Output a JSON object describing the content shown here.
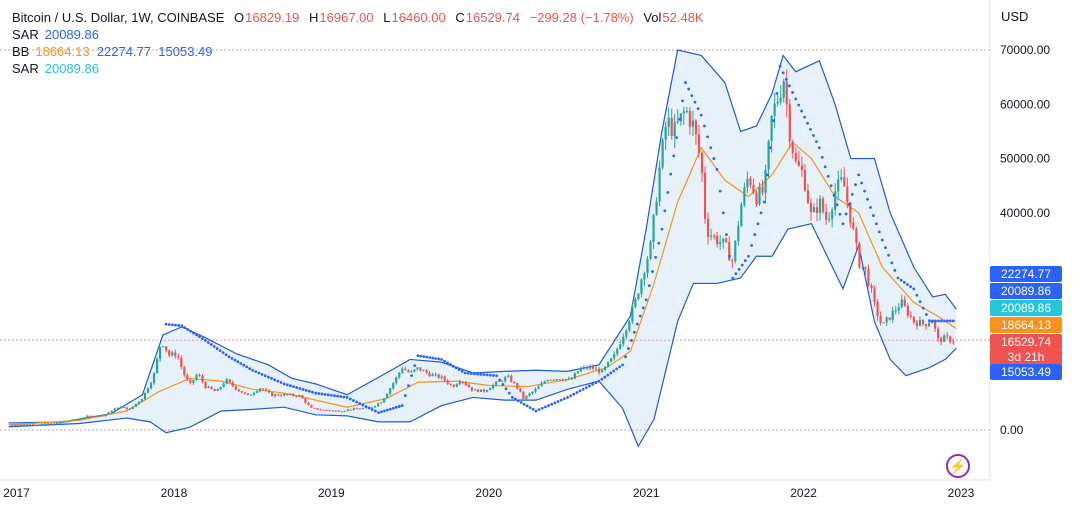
{
  "legend": {
    "symbol": "Bitcoin / U.S. Dollar, 1W, COINBASE",
    "o_label": "O",
    "o_value": "16829.19",
    "h_label": "H",
    "h_value": "16967.00",
    "l_label": "L",
    "l_value": "16460.00",
    "c_label": "C",
    "c_value": "16529.74",
    "change": "−299.28 (−1.78%)",
    "vol_label": "Vol",
    "vol_value": "52.48K",
    "sar1_label": "SAR",
    "sar1_value": "20089.86",
    "bb_label": "BB",
    "bb_mid": "18664.13",
    "bb_upper": "22274.77",
    "bb_lower": "15053.49",
    "sar2_label": "SAR",
    "sar2_value": "20089.86"
  },
  "currency": "USD",
  "price_tags": {
    "bb_upper": "22274.77",
    "sar1": "20089.86",
    "sar2": "20089.86",
    "bb_mid": "18664.13",
    "last_price": "16529.74",
    "countdown": "3d 21h",
    "bb_lower": "15053.49"
  },
  "colors": {
    "up": "#26a69a",
    "down": "#ef5350",
    "bb_band": "#1e5bd6",
    "bb_mid": "#f7931a",
    "bb_fill": "#e3eef9",
    "sar1": "#2962ff",
    "sar2": "#26c6da",
    "grid_dotted": "#d1a0a0"
  },
  "icons": {
    "logo": "lightning-icon"
  },
  "chart_data": {
    "type": "candlestick",
    "title": "Bitcoin / U.S. Dollar, 1W, COINBASE",
    "y_ticks": [
      "70000.00",
      "60000.00",
      "50000.00",
      "40000.00",
      "0.00"
    ],
    "x_ticks": [
      "2017",
      "2018",
      "2019",
      "2020",
      "2021",
      "2022",
      "2023"
    ],
    "ylim": [
      -10000,
      78000
    ],
    "series": [
      {
        "name": "BTCUSD",
        "close": [
          [
            2016.95,
            970
          ],
          [
            2017.1,
            1040
          ],
          [
            2017.25,
            1150
          ],
          [
            2017.35,
            1800
          ],
          [
            2017.45,
            2500
          ],
          [
            2017.55,
            2700
          ],
          [
            2017.65,
            4300
          ],
          [
            2017.72,
            3800
          ],
          [
            2017.8,
            5900
          ],
          [
            2017.87,
            9800
          ],
          [
            2017.92,
            16500
          ],
          [
            2017.97,
            13800
          ],
          [
            2018.02,
            14000
          ],
          [
            2018.06,
            10500
          ],
          [
            2018.1,
            8200
          ],
          [
            2018.15,
            10400
          ],
          [
            2018.2,
            8000
          ],
          [
            2018.27,
            7000
          ],
          [
            2018.33,
            9200
          ],
          [
            2018.4,
            7500
          ],
          [
            2018.47,
            6300
          ],
          [
            2018.55,
            7800
          ],
          [
            2018.62,
            6400
          ],
          [
            2018.7,
            6500
          ],
          [
            2018.8,
            6300
          ],
          [
            2018.87,
            4000
          ],
          [
            2018.95,
            3700
          ],
          [
            2019.05,
            3500
          ],
          [
            2019.15,
            3900
          ],
          [
            2019.25,
            4100
          ],
          [
            2019.32,
            5300
          ],
          [
            2019.38,
            8000
          ],
          [
            2019.45,
            11500
          ],
          [
            2019.5,
            10400
          ],
          [
            2019.55,
            11400
          ],
          [
            2019.62,
            10300
          ],
          [
            2019.7,
            9600
          ],
          [
            2019.77,
            8000
          ],
          [
            2019.82,
            9300
          ],
          [
            2019.9,
            7300
          ],
          [
            2019.97,
            7200
          ],
          [
            2020.05,
            8700
          ],
          [
            2020.12,
            9800
          ],
          [
            2020.18,
            7900
          ],
          [
            2020.22,
            5800
          ],
          [
            2020.3,
            7500
          ],
          [
            2020.37,
            9400
          ],
          [
            2020.45,
            9500
          ],
          [
            2020.52,
            9200
          ],
          [
            2020.58,
            11300
          ],
          [
            2020.65,
            11500
          ],
          [
            2020.72,
            10700
          ],
          [
            2020.8,
            13800
          ],
          [
            2020.87,
            18700
          ],
          [
            2020.93,
            23500
          ],
          [
            2020.98,
            29000
          ],
          [
            2021.03,
            34000
          ],
          [
            2021.08,
            47000
          ],
          [
            2021.13,
            57000
          ],
          [
            2021.18,
            55000
          ],
          [
            2021.25,
            59000
          ],
          [
            2021.3,
            56000
          ],
          [
            2021.35,
            49000
          ],
          [
            2021.38,
            37000
          ],
          [
            2021.43,
            35500
          ],
          [
            2021.5,
            34000
          ],
          [
            2021.55,
            31000
          ],
          [
            2021.6,
            41000
          ],
          [
            2021.65,
            47000
          ],
          [
            2021.7,
            43000
          ],
          [
            2021.75,
            44000
          ],
          [
            2021.8,
            58000
          ],
          [
            2021.84,
            61500
          ],
          [
            2021.88,
            65500
          ],
          [
            2021.9,
            57000
          ],
          [
            2021.95,
            49000
          ],
          [
            2022.0,
            47000
          ],
          [
            2022.05,
            39000
          ],
          [
            2022.1,
            42000
          ],
          [
            2022.15,
            38500
          ],
          [
            2022.2,
            44000
          ],
          [
            2022.25,
            46000
          ],
          [
            2022.3,
            39000
          ],
          [
            2022.35,
            31000
          ],
          [
            2022.4,
            29000
          ],
          [
            2022.45,
            23000
          ],
          [
            2022.5,
            19000
          ],
          [
            2022.55,
            21000
          ],
          [
            2022.62,
            23500
          ],
          [
            2022.7,
            20000
          ],
          [
            2022.77,
            19500
          ],
          [
            2022.82,
            20500
          ],
          [
            2022.85,
            16500
          ],
          [
            2022.9,
            16900
          ],
          [
            2022.95,
            16500
          ]
        ]
      },
      {
        "name": "BB",
        "upper": [
          [
            2016.95,
            1300
          ],
          [
            2017.3,
            1500
          ],
          [
            2017.6,
            3000
          ],
          [
            2017.8,
            6500
          ],
          [
            2017.93,
            17500
          ],
          [
            2018.05,
            19000
          ],
          [
            2018.2,
            17000
          ],
          [
            2018.4,
            14000
          ],
          [
            2018.6,
            12000
          ],
          [
            2018.75,
            9500
          ],
          [
            2018.9,
            8500
          ],
          [
            2019.1,
            6500
          ],
          [
            2019.35,
            10500
          ],
          [
            2019.5,
            13000
          ],
          [
            2019.7,
            12500
          ],
          [
            2019.9,
            10500
          ],
          [
            2020.1,
            10800
          ],
          [
            2020.3,
            11000
          ],
          [
            2020.5,
            10800
          ],
          [
            2020.7,
            12000
          ],
          [
            2020.9,
            21000
          ],
          [
            2021.0,
            37000
          ],
          [
            2021.1,
            55000
          ],
          [
            2021.2,
            70000
          ],
          [
            2021.35,
            69000
          ],
          [
            2021.5,
            64000
          ],
          [
            2021.6,
            55000
          ],
          [
            2021.7,
            56000
          ],
          [
            2021.8,
            62000
          ],
          [
            2021.87,
            69000
          ],
          [
            2021.95,
            66000
          ],
          [
            2022.1,
            68000
          ],
          [
            2022.2,
            60000
          ],
          [
            2022.3,
            50000
          ],
          [
            2022.45,
            50000
          ],
          [
            2022.55,
            40000
          ],
          [
            2022.7,
            30000
          ],
          [
            2022.82,
            24500
          ],
          [
            2022.9,
            25000
          ],
          [
            2022.97,
            22274
          ]
        ],
        "middle": [
          [
            2016.95,
            950
          ],
          [
            2017.4,
            1800
          ],
          [
            2017.7,
            3500
          ],
          [
            2017.9,
            7000
          ],
          [
            2018.1,
            9500
          ],
          [
            2018.3,
            9000
          ],
          [
            2018.5,
            7500
          ],
          [
            2018.7,
            6800
          ],
          [
            2018.9,
            5500
          ],
          [
            2019.1,
            4200
          ],
          [
            2019.35,
            5800
          ],
          [
            2019.55,
            8800
          ],
          [
            2019.8,
            9000
          ],
          [
            2020.0,
            8200
          ],
          [
            2020.25,
            8000
          ],
          [
            2020.5,
            9300
          ],
          [
            2020.75,
            11500
          ],
          [
            2020.9,
            14500
          ],
          [
            2021.05,
            27000
          ],
          [
            2021.2,
            42000
          ],
          [
            2021.35,
            52000
          ],
          [
            2021.5,
            46000
          ],
          [
            2021.65,
            43000
          ],
          [
            2021.8,
            47000
          ],
          [
            2021.93,
            53000
          ],
          [
            2022.05,
            50000
          ],
          [
            2022.2,
            43000
          ],
          [
            2022.35,
            40000
          ],
          [
            2022.5,
            30000
          ],
          [
            2022.7,
            23500
          ],
          [
            2022.85,
            21000
          ],
          [
            2022.97,
            18664
          ]
        ],
        "lower": [
          [
            2016.95,
            600
          ],
          [
            2017.4,
            1200
          ],
          [
            2017.7,
            2200
          ],
          [
            2017.85,
            1500
          ],
          [
            2017.95,
            -500
          ],
          [
            2018.1,
            500
          ],
          [
            2018.3,
            3500
          ],
          [
            2018.5,
            3800
          ],
          [
            2018.7,
            4200
          ],
          [
            2018.9,
            2800
          ],
          [
            2019.1,
            2600
          ],
          [
            2019.3,
            1500
          ],
          [
            2019.5,
            1500
          ],
          [
            2019.7,
            4500
          ],
          [
            2019.9,
            6000
          ],
          [
            2020.1,
            5500
          ],
          [
            2020.3,
            5500
          ],
          [
            2020.5,
            7500
          ],
          [
            2020.7,
            9000
          ],
          [
            2020.85,
            4000
          ],
          [
            2020.95,
            -3000
          ],
          [
            2021.05,
            2000
          ],
          [
            2021.2,
            20000
          ],
          [
            2021.3,
            27000
          ],
          [
            2021.45,
            27000
          ],
          [
            2021.6,
            28000
          ],
          [
            2021.7,
            32000
          ],
          [
            2021.8,
            32000
          ],
          [
            2021.9,
            37000
          ],
          [
            2022.05,
            38000
          ],
          [
            2022.15,
            32000
          ],
          [
            2022.25,
            26000
          ],
          [
            2022.35,
            34000
          ],
          [
            2022.45,
            20000
          ],
          [
            2022.55,
            13000
          ],
          [
            2022.65,
            10000
          ],
          [
            2022.8,
            11500
          ],
          [
            2022.9,
            13000
          ],
          [
            2022.97,
            15053
          ]
        ]
      },
      {
        "name": "SAR",
        "points": [
          [
            2017.95,
            19500
          ],
          [
            2018.05,
            19200
          ],
          [
            2018.2,
            16500
          ],
          [
            2018.35,
            13500
          ],
          [
            2018.5,
            11000
          ],
          [
            2018.7,
            8500
          ],
          [
            2018.9,
            6800
          ],
          [
            2019.1,
            6000
          ],
          [
            2019.3,
            3200
          ],
          [
            2019.45,
            4500
          ],
          [
            2019.55,
            13700
          ],
          [
            2019.7,
            13000
          ],
          [
            2019.85,
            10500
          ],
          [
            2020.05,
            10000
          ],
          [
            2020.15,
            6000
          ],
          [
            2020.3,
            3500
          ],
          [
            2020.5,
            6000
          ],
          [
            2020.7,
            9000
          ],
          [
            2020.85,
            12000
          ],
          [
            2021.0,
            24000
          ],
          [
            2021.1,
            37000
          ],
          [
            2021.25,
            64000
          ],
          [
            2021.35,
            58000
          ],
          [
            2021.45,
            48000
          ],
          [
            2021.55,
            28000
          ],
          [
            2021.65,
            32000
          ],
          [
            2021.75,
            42000
          ],
          [
            2021.85,
            67000
          ],
          [
            2021.95,
            61000
          ],
          [
            2022.1,
            52000
          ],
          [
            2022.25,
            38000
          ],
          [
            2022.35,
            47000
          ],
          [
            2022.5,
            35000
          ],
          [
            2022.6,
            28000
          ],
          [
            2022.7,
            26000
          ],
          [
            2022.8,
            20089
          ],
          [
            2022.97,
            20089
          ]
        ]
      }
    ],
    "last_price": 16529.74
  }
}
